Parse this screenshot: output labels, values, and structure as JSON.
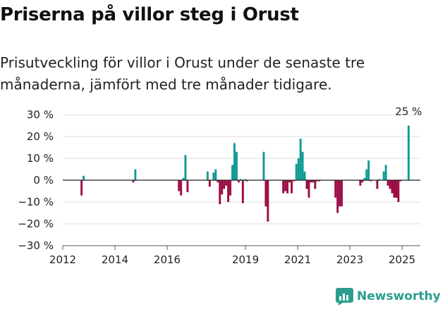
{
  "title": "Priserna på villor steg i Orust",
  "subtitle": "Prisutveckling för villor i Orust under de senaste tre månaderna, jämfört med tre månader tidigare.",
  "brand": {
    "name": "Newsworthy",
    "icon": "newsworthy-bar-chart-icon",
    "color": "#2a9d8f"
  },
  "chart_data": {
    "type": "bar",
    "colors": {
      "positive": "#0f9a94",
      "negative": "#9b0a42"
    },
    "ylim": [
      -30,
      30
    ],
    "yticks": [
      -30,
      -20,
      -10,
      0,
      10,
      20,
      30
    ],
    "ytick_labels": [
      "−30 %",
      "−20 %",
      "−10 %",
      "0 %",
      "10 %",
      "20 %",
      "30 %"
    ],
    "xlim": [
      2012,
      2025.7
    ],
    "xticks": [
      2012,
      2014,
      2016,
      2019,
      2021,
      2023,
      2025
    ],
    "xtick_labels": [
      "2012",
      "2014",
      "2016",
      "2019",
      "2021",
      "2023",
      "2025"
    ],
    "grid": true,
    "annotation": {
      "text": "25 %",
      "x": 2025.25,
      "y": 25
    },
    "series": [
      {
        "x": [
          2012.72,
          2012.8,
          2014.7,
          2014.78,
          2016.45,
          2016.53,
          2016.62,
          2016.7,
          2016.78,
          2017.55,
          2017.63,
          2017.78,
          2017.86,
          2017.94,
          2018.02,
          2018.1,
          2018.18,
          2018.26,
          2018.34,
          2018.42,
          2018.5,
          2018.58,
          2018.66,
          2018.74,
          2018.82,
          2018.9,
          2018.98,
          2019.06,
          2019.7,
          2019.78,
          2019.86,
          2020.45,
          2020.53,
          2020.61,
          2020.69,
          2020.77,
          2020.86,
          2020.95,
          2021.03,
          2021.11,
          2021.19,
          2021.27,
          2021.35,
          2021.43,
          2021.51,
          2021.59,
          2021.67,
          2021.75,
          2021.83,
          2022.45,
          2022.53,
          2022.61,
          2022.69,
          2023.4,
          2023.48,
          2023.56,
          2023.64,
          2023.72,
          2023.8,
          2024.05,
          2024.13,
          2024.3,
          2024.38,
          2024.46,
          2024.54,
          2024.62,
          2024.7,
          2024.78,
          2024.86,
          2024.94,
          2025.25
        ],
        "values": [
          -7,
          2,
          -1,
          5,
          -5,
          -7,
          1,
          11.5,
          -5.5,
          4,
          -3,
          3.5,
          5,
          -1,
          -11,
          -6.5,
          -4,
          -2.5,
          -10,
          -7,
          7,
          17,
          13,
          -1,
          0.5,
          -10.5,
          0.5,
          -0.5,
          13,
          -12,
          -19,
          -6,
          -5,
          -6,
          -1,
          -6,
          -0.5,
          7.5,
          10,
          19,
          13,
          4,
          -4,
          -8,
          -1,
          -1,
          -4,
          -0.5,
          -0.5,
          -8,
          -15,
          -12,
          -12,
          -2.5,
          -1,
          1,
          5,
          9,
          -0.5,
          -4,
          0.5,
          4,
          7,
          -2.5,
          -4,
          -6,
          -8,
          -8,
          -10,
          -0.5,
          25
        ]
      }
    ]
  }
}
